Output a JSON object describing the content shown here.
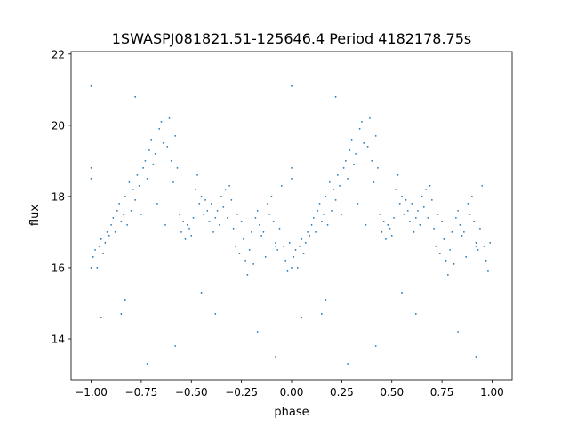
{
  "chart_data": {
    "type": "scatter",
    "title": "1SWASPJ081821.51-125646.4 Period 4182178.75s",
    "xlabel": "phase",
    "ylabel": "flux",
    "xlim": [
      -1.1,
      1.1
    ],
    "ylim": [
      12.85,
      22.07
    ],
    "xticks": [
      -1.0,
      -0.75,
      -0.5,
      -0.25,
      0.0,
      0.25,
      0.5,
      0.75,
      1.0
    ],
    "xtick_labels": [
      "−1.00",
      "−0.75",
      "−0.50",
      "−0.25",
      "0.00",
      "0.25",
      "0.50",
      "0.75",
      "1.00"
    ],
    "yticks": [
      14,
      16,
      18,
      20,
      22
    ],
    "ytick_labels": [
      "14",
      "16",
      "18",
      "20",
      "22"
    ],
    "grid": false,
    "marker_color": "#1f77b4",
    "phase_repeated_at_minus_one": true,
    "points": [
      [
        0.0,
        16.0
      ],
      [
        0.0,
        18.8
      ],
      [
        0.0,
        18.5
      ],
      [
        0.01,
        16.3
      ],
      [
        0.02,
        16.5
      ],
      [
        0.03,
        16.0
      ],
      [
        0.04,
        16.6
      ],
      [
        0.05,
        16.8
      ],
      [
        0.06,
        16.4
      ],
      [
        0.07,
        16.7
      ],
      [
        0.08,
        17.0
      ],
      [
        0.09,
        16.9
      ],
      [
        0.1,
        17.2
      ],
      [
        0.11,
        17.4
      ],
      [
        0.12,
        17.0
      ],
      [
        0.13,
        17.6
      ],
      [
        0.14,
        17.8
      ],
      [
        0.15,
        17.3
      ],
      [
        0.16,
        17.5
      ],
      [
        0.17,
        18.0
      ],
      [
        0.18,
        17.2
      ],
      [
        0.19,
        18.4
      ],
      [
        0.2,
        17.6
      ],
      [
        0.21,
        18.2
      ],
      [
        0.22,
        17.9
      ],
      [
        0.23,
        18.6
      ],
      [
        0.24,
        18.3
      ],
      [
        0.25,
        17.5
      ],
      [
        0.26,
        18.8
      ],
      [
        0.27,
        19.0
      ],
      [
        0.28,
        18.5
      ],
      [
        0.29,
        19.3
      ],
      [
        0.3,
        19.6
      ],
      [
        0.31,
        18.9
      ],
      [
        0.32,
        19.2
      ],
      [
        0.33,
        17.8
      ],
      [
        0.34,
        19.9
      ],
      [
        0.35,
        20.1
      ],
      [
        0.36,
        19.5
      ],
      [
        0.37,
        17.2
      ],
      [
        0.38,
        19.4
      ],
      [
        0.39,
        20.2
      ],
      [
        0.4,
        19.0
      ],
      [
        0.41,
        18.4
      ],
      [
        0.42,
        19.7
      ],
      [
        0.43,
        18.8
      ],
      [
        0.44,
        17.5
      ],
      [
        0.45,
        17.0
      ],
      [
        0.46,
        17.3
      ],
      [
        0.47,
        16.8
      ],
      [
        0.48,
        17.2
      ],
      [
        0.49,
        17.1
      ],
      [
        0.5,
        16.9
      ],
      [
        0.51,
        17.4
      ],
      [
        0.52,
        18.2
      ],
      [
        0.53,
        18.6
      ],
      [
        0.54,
        17.8
      ],
      [
        0.55,
        18.0
      ],
      [
        0.56,
        17.5
      ],
      [
        0.57,
        17.9
      ],
      [
        0.58,
        17.6
      ],
      [
        0.59,
        17.3
      ],
      [
        0.6,
        17.8
      ],
      [
        0.61,
        17.0
      ],
      [
        0.62,
        17.4
      ],
      [
        0.63,
        17.6
      ],
      [
        0.64,
        17.2
      ],
      [
        0.65,
        18.0
      ],
      [
        0.66,
        17.7
      ],
      [
        0.67,
        18.2
      ],
      [
        0.68,
        17.4
      ],
      [
        0.69,
        18.3
      ],
      [
        0.7,
        17.9
      ],
      [
        0.71,
        17.1
      ],
      [
        0.72,
        16.6
      ],
      [
        0.73,
        17.5
      ],
      [
        0.74,
        16.4
      ],
      [
        0.75,
        17.3
      ],
      [
        0.76,
        16.8
      ],
      [
        0.77,
        16.2
      ],
      [
        0.78,
        15.8
      ],
      [
        0.79,
        16.5
      ],
      [
        0.8,
        17.0
      ],
      [
        0.81,
        16.1
      ],
      [
        0.82,
        17.4
      ],
      [
        0.83,
        17.6
      ],
      [
        0.84,
        17.2
      ],
      [
        0.85,
        16.9
      ],
      [
        0.86,
        17.0
      ],
      [
        0.87,
        16.3
      ],
      [
        0.88,
        17.8
      ],
      [
        0.89,
        17.5
      ],
      [
        0.9,
        18.0
      ],
      [
        0.91,
        17.3
      ],
      [
        0.92,
        16.7
      ],
      [
        0.93,
        16.5
      ],
      [
        0.94,
        17.1
      ],
      [
        0.95,
        18.3
      ],
      [
        0.96,
        16.6
      ],
      [
        0.97,
        16.2
      ],
      [
        0.98,
        15.9
      ],
      [
        0.99,
        16.7
      ],
      [
        0.92,
        16.6
      ],
      [
        0.05,
        14.6
      ],
      [
        0.15,
        14.7
      ],
      [
        0.42,
        13.8
      ],
      [
        0.62,
        14.7
      ],
      [
        0.83,
        14.2
      ],
      [
        0.92,
        13.5
      ],
      [
        0.17,
        15.1
      ],
      [
        0.55,
        15.3
      ],
      [
        0.28,
        13.3
      ],
      [
        0.0,
        21.1
      ],
      [
        0.22,
        20.8
      ]
    ]
  }
}
